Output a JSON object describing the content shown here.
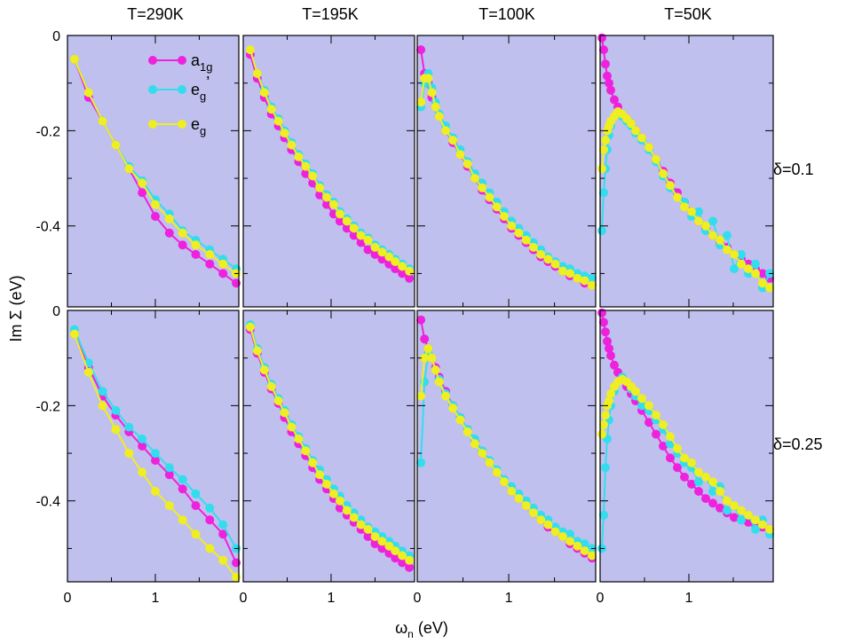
{
  "figure": {
    "column_titles": [
      "T=290K",
      "T=195K",
      "T=100K",
      "T=50K"
    ],
    "row_labels": [
      "δ=0.1",
      "δ=0.25"
    ],
    "xlabel": {
      "base": "ω",
      "sub": "n",
      "rest": " (eV)"
    },
    "ylabel": "Im Σ (eV)"
  },
  "chart_data": {
    "type": "line",
    "layout": "4 columns (temperature) x 2 rows (doping)",
    "xlim": [
      0,
      1.95
    ],
    "ylim": [
      -0.57,
      0
    ],
    "x_ticks": [
      "0",
      "1"
    ],
    "y_ticks": [
      "0",
      "-0.2",
      "-0.4"
    ],
    "background_color": "#c0c0ee",
    "series_styles": [
      {
        "key": "a1g",
        "base": "a",
        "sub": "1g",
        "sup": "",
        "color": "#ee22dd"
      },
      {
        "key": "egp",
        "base": "e",
        "sub": "g",
        "sup": "’",
        "color": "#33ddee"
      },
      {
        "key": "eg",
        "base": "e",
        "sub": "g",
        "sup": "",
        "color": "#eeee22"
      }
    ],
    "panels": [
      {
        "row": 0,
        "col": 0,
        "x": [
          0.08,
          0.24,
          0.4,
          0.55,
          0.7,
          0.85,
          1.0,
          1.16,
          1.31,
          1.46,
          1.62,
          1.77,
          1.92
        ],
        "series": {
          "a1g": [
            -0.05,
            -0.13,
            -0.18,
            -0.23,
            -0.28,
            -0.33,
            -0.38,
            -0.415,
            -0.44,
            -0.46,
            -0.48,
            -0.5,
            -0.52
          ],
          "egp": [
            -0.05,
            -0.12,
            -0.18,
            -0.23,
            -0.275,
            -0.305,
            -0.345,
            -0.375,
            -0.41,
            -0.43,
            -0.45,
            -0.47,
            -0.49
          ],
          "eg": [
            -0.05,
            -0.12,
            -0.18,
            -0.23,
            -0.28,
            -0.31,
            -0.355,
            -0.385,
            -0.415,
            -0.44,
            -0.46,
            -0.48,
            -0.5
          ]
        }
      },
      {
        "row": 0,
        "col": 1,
        "x": [
          0.08,
          0.16,
          0.24,
          0.32,
          0.4,
          0.47,
          0.55,
          0.63,
          0.71,
          0.79,
          0.87,
          0.95,
          1.03,
          1.1,
          1.18,
          1.26,
          1.34,
          1.42,
          1.5,
          1.58,
          1.66,
          1.73,
          1.81,
          1.89
        ],
        "series": {
          "a1g": [
            -0.04,
            -0.09,
            -0.13,
            -0.165,
            -0.19,
            -0.215,
            -0.24,
            -0.265,
            -0.29,
            -0.31,
            -0.335,
            -0.355,
            -0.375,
            -0.39,
            -0.405,
            -0.42,
            -0.435,
            -0.45,
            -0.46,
            -0.47,
            -0.48,
            -0.49,
            -0.5,
            -0.51
          ],
          "egp": [
            -0.03,
            -0.08,
            -0.115,
            -0.15,
            -0.175,
            -0.2,
            -0.225,
            -0.25,
            -0.27,
            -0.29,
            -0.315,
            -0.335,
            -0.35,
            -0.37,
            -0.385,
            -0.4,
            -0.415,
            -0.425,
            -0.44,
            -0.45,
            -0.46,
            -0.47,
            -0.48,
            -0.49
          ],
          "eg": [
            -0.03,
            -0.08,
            -0.12,
            -0.155,
            -0.18,
            -0.205,
            -0.23,
            -0.255,
            -0.275,
            -0.295,
            -0.32,
            -0.34,
            -0.355,
            -0.375,
            -0.39,
            -0.405,
            -0.42,
            -0.43,
            -0.445,
            -0.455,
            -0.465,
            -0.475,
            -0.485,
            -0.495
          ]
        }
      },
      {
        "row": 0,
        "col": 2,
        "x": [
          0.04,
          0.08,
          0.12,
          0.16,
          0.2,
          0.24,
          0.31,
          0.39,
          0.47,
          0.55,
          0.63,
          0.71,
          0.79,
          0.87,
          0.95,
          1.03,
          1.11,
          1.19,
          1.27,
          1.35,
          1.43,
          1.51,
          1.59,
          1.67,
          1.75,
          1.83,
          1.91
        ],
        "series": {
          "a1g": [
            -0.03,
            -0.08,
            -0.1,
            -0.13,
            -0.15,
            -0.17,
            -0.2,
            -0.225,
            -0.25,
            -0.275,
            -0.3,
            -0.325,
            -0.345,
            -0.365,
            -0.385,
            -0.405,
            -0.42,
            -0.435,
            -0.45,
            -0.465,
            -0.475,
            -0.485,
            -0.495,
            -0.505,
            -0.51,
            -0.52,
            -0.525
          ],
          "egp": [
            -0.15,
            -0.1,
            -0.08,
            -0.11,
            -0.14,
            -0.165,
            -0.19,
            -0.215,
            -0.24,
            -0.265,
            -0.29,
            -0.31,
            -0.33,
            -0.35,
            -0.37,
            -0.39,
            -0.405,
            -0.42,
            -0.435,
            -0.45,
            -0.465,
            -0.475,
            -0.485,
            -0.49,
            -0.5,
            -0.505,
            -0.51
          ],
          "eg": [
            -0.14,
            -0.09,
            -0.09,
            -0.12,
            -0.15,
            -0.17,
            -0.2,
            -0.22,
            -0.25,
            -0.27,
            -0.3,
            -0.32,
            -0.34,
            -0.36,
            -0.38,
            -0.4,
            -0.415,
            -0.43,
            -0.445,
            -0.46,
            -0.47,
            -0.48,
            -0.495,
            -0.5,
            -0.51,
            -0.515,
            -0.525
          ]
        }
      },
      {
        "row": 0,
        "col": 3,
        "x": [
          0.02,
          0.04,
          0.06,
          0.08,
          0.1,
          0.12,
          0.16,
          0.2,
          0.25,
          0.3,
          0.35,
          0.4,
          0.47,
          0.55,
          0.63,
          0.71,
          0.79,
          0.87,
          0.95,
          1.03,
          1.11,
          1.19,
          1.27,
          1.35,
          1.43,
          1.51,
          1.59,
          1.67,
          1.75,
          1.83,
          1.91
        ],
        "series": {
          "a1g": [
            -0.005,
            -0.03,
            -0.06,
            -0.085,
            -0.1,
            -0.115,
            -0.135,
            -0.15,
            -0.165,
            -0.175,
            -0.185,
            -0.2,
            -0.215,
            -0.235,
            -0.26,
            -0.285,
            -0.31,
            -0.33,
            -0.35,
            -0.37,
            -0.39,
            -0.405,
            -0.42,
            -0.435,
            -0.445,
            -0.46,
            -0.47,
            -0.48,
            -0.49,
            -0.5,
            -0.51
          ],
          "egp": [
            -0.41,
            -0.33,
            -0.28,
            -0.24,
            -0.21,
            -0.19,
            -0.17,
            -0.165,
            -0.17,
            -0.18,
            -0.19,
            -0.205,
            -0.22,
            -0.24,
            -0.265,
            -0.295,
            -0.32,
            -0.34,
            -0.35,
            -0.38,
            -0.37,
            -0.41,
            -0.39,
            -0.44,
            -0.42,
            -0.49,
            -0.46,
            -0.5,
            -0.48,
            -0.53,
            -0.5
          ],
          "eg": [
            -0.28,
            -0.24,
            -0.22,
            -0.2,
            -0.19,
            -0.18,
            -0.17,
            -0.16,
            -0.165,
            -0.175,
            -0.185,
            -0.2,
            -0.215,
            -0.235,
            -0.26,
            -0.29,
            -0.315,
            -0.34,
            -0.36,
            -0.37,
            -0.39,
            -0.4,
            -0.42,
            -0.43,
            -0.45,
            -0.46,
            -0.48,
            -0.49,
            -0.5,
            -0.52,
            -0.53
          ]
        }
      },
      {
        "row": 1,
        "col": 0,
        "x": [
          0.08,
          0.24,
          0.4,
          0.55,
          0.7,
          0.85,
          1.0,
          1.16,
          1.31,
          1.46,
          1.62,
          1.77,
          1.92
        ],
        "series": {
          "a1g": [
            -0.05,
            -0.12,
            -0.18,
            -0.22,
            -0.255,
            -0.285,
            -0.315,
            -0.345,
            -0.375,
            -0.41,
            -0.44,
            -0.47,
            -0.53
          ],
          "egp": [
            -0.04,
            -0.11,
            -0.17,
            -0.21,
            -0.245,
            -0.27,
            -0.3,
            -0.33,
            -0.355,
            -0.385,
            -0.415,
            -0.45,
            -0.5
          ],
          "eg": [
            -0.05,
            -0.13,
            -0.2,
            -0.25,
            -0.3,
            -0.34,
            -0.38,
            -0.41,
            -0.44,
            -0.47,
            -0.5,
            -0.525,
            -0.56
          ]
        }
      },
      {
        "row": 1,
        "col": 1,
        "x": [
          0.08,
          0.16,
          0.24,
          0.32,
          0.4,
          0.47,
          0.55,
          0.63,
          0.71,
          0.79,
          0.87,
          0.95,
          1.03,
          1.1,
          1.18,
          1.26,
          1.34,
          1.42,
          1.5,
          1.58,
          1.66,
          1.73,
          1.81,
          1.89
        ],
        "series": {
          "a1g": [
            -0.04,
            -0.09,
            -0.13,
            -0.165,
            -0.195,
            -0.225,
            -0.255,
            -0.28,
            -0.305,
            -0.33,
            -0.355,
            -0.375,
            -0.395,
            -0.415,
            -0.43,
            -0.445,
            -0.46,
            -0.475,
            -0.49,
            -0.5,
            -0.51,
            -0.52,
            -0.53,
            -0.54
          ],
          "egp": [
            -0.03,
            -0.08,
            -0.12,
            -0.155,
            -0.185,
            -0.21,
            -0.24,
            -0.265,
            -0.29,
            -0.315,
            -0.335,
            -0.355,
            -0.375,
            -0.39,
            -0.41,
            -0.425,
            -0.44,
            -0.455,
            -0.465,
            -0.475,
            -0.485,
            -0.495,
            -0.505,
            -0.515
          ],
          "eg": [
            -0.035,
            -0.085,
            -0.125,
            -0.16,
            -0.19,
            -0.215,
            -0.245,
            -0.27,
            -0.295,
            -0.32,
            -0.345,
            -0.365,
            -0.385,
            -0.4,
            -0.42,
            -0.435,
            -0.45,
            -0.46,
            -0.475,
            -0.485,
            -0.495,
            -0.505,
            -0.515,
            -0.525
          ]
        }
      },
      {
        "row": 1,
        "col": 2,
        "x": [
          0.04,
          0.08,
          0.12,
          0.16,
          0.2,
          0.24,
          0.31,
          0.39,
          0.47,
          0.55,
          0.63,
          0.71,
          0.79,
          0.87,
          0.95,
          1.03,
          1.11,
          1.19,
          1.27,
          1.35,
          1.43,
          1.51,
          1.59,
          1.67,
          1.75,
          1.83,
          1.91
        ],
        "series": {
          "a1g": [
            -0.02,
            -0.06,
            -0.08,
            -0.1,
            -0.12,
            -0.14,
            -0.17,
            -0.2,
            -0.225,
            -0.25,
            -0.275,
            -0.3,
            -0.32,
            -0.34,
            -0.36,
            -0.38,
            -0.395,
            -0.41,
            -0.425,
            -0.44,
            -0.455,
            -0.465,
            -0.475,
            -0.49,
            -0.5,
            -0.51,
            -0.52
          ],
          "egp": [
            -0.32,
            -0.15,
            -0.09,
            -0.1,
            -0.125,
            -0.145,
            -0.175,
            -0.2,
            -0.225,
            -0.25,
            -0.27,
            -0.295,
            -0.315,
            -0.335,
            -0.355,
            -0.37,
            -0.385,
            -0.4,
            -0.415,
            -0.43,
            -0.44,
            -0.455,
            -0.465,
            -0.47,
            -0.485,
            -0.49,
            -0.5
          ],
          "eg": [
            -0.18,
            -0.1,
            -0.08,
            -0.1,
            -0.125,
            -0.15,
            -0.18,
            -0.205,
            -0.23,
            -0.255,
            -0.28,
            -0.3,
            -0.32,
            -0.34,
            -0.36,
            -0.38,
            -0.395,
            -0.41,
            -0.425,
            -0.44,
            -0.45,
            -0.465,
            -0.475,
            -0.485,
            -0.495,
            -0.505,
            -0.515
          ]
        }
      },
      {
        "row": 1,
        "col": 3,
        "x": [
          0.02,
          0.04,
          0.06,
          0.08,
          0.1,
          0.12,
          0.16,
          0.2,
          0.25,
          0.3,
          0.35,
          0.4,
          0.47,
          0.55,
          0.63,
          0.71,
          0.79,
          0.87,
          0.95,
          1.03,
          1.11,
          1.19,
          1.27,
          1.35,
          1.43,
          1.51,
          1.59,
          1.67,
          1.75,
          1.83,
          1.91
        ],
        "series": {
          "a1g": [
            -0.005,
            -0.025,
            -0.045,
            -0.065,
            -0.08,
            -0.095,
            -0.115,
            -0.13,
            -0.145,
            -0.16,
            -0.175,
            -0.19,
            -0.21,
            -0.235,
            -0.26,
            -0.285,
            -0.31,
            -0.33,
            -0.35,
            -0.365,
            -0.38,
            -0.395,
            -0.405,
            -0.415,
            -0.425,
            -0.435,
            -0.44,
            -0.445,
            -0.45,
            -0.455,
            -0.46
          ],
          "egp": [
            -0.5,
            -0.43,
            -0.33,
            -0.27,
            -0.23,
            -0.2,
            -0.17,
            -0.15,
            -0.14,
            -0.15,
            -0.165,
            -0.18,
            -0.2,
            -0.21,
            -0.23,
            -0.25,
            -0.28,
            -0.3,
            -0.32,
            -0.33,
            -0.36,
            -0.35,
            -0.38,
            -0.37,
            -0.42,
            -0.41,
            -0.44,
            -0.43,
            -0.46,
            -0.44,
            -0.47
          ],
          "eg": [
            -0.26,
            -0.24,
            -0.22,
            -0.2,
            -0.19,
            -0.175,
            -0.16,
            -0.15,
            -0.145,
            -0.15,
            -0.16,
            -0.17,
            -0.185,
            -0.2,
            -0.22,
            -0.24,
            -0.265,
            -0.29,
            -0.31,
            -0.32,
            -0.34,
            -0.35,
            -0.36,
            -0.38,
            -0.4,
            -0.41,
            -0.42,
            -0.43,
            -0.44,
            -0.45,
            -0.46
          ]
        }
      }
    ]
  }
}
